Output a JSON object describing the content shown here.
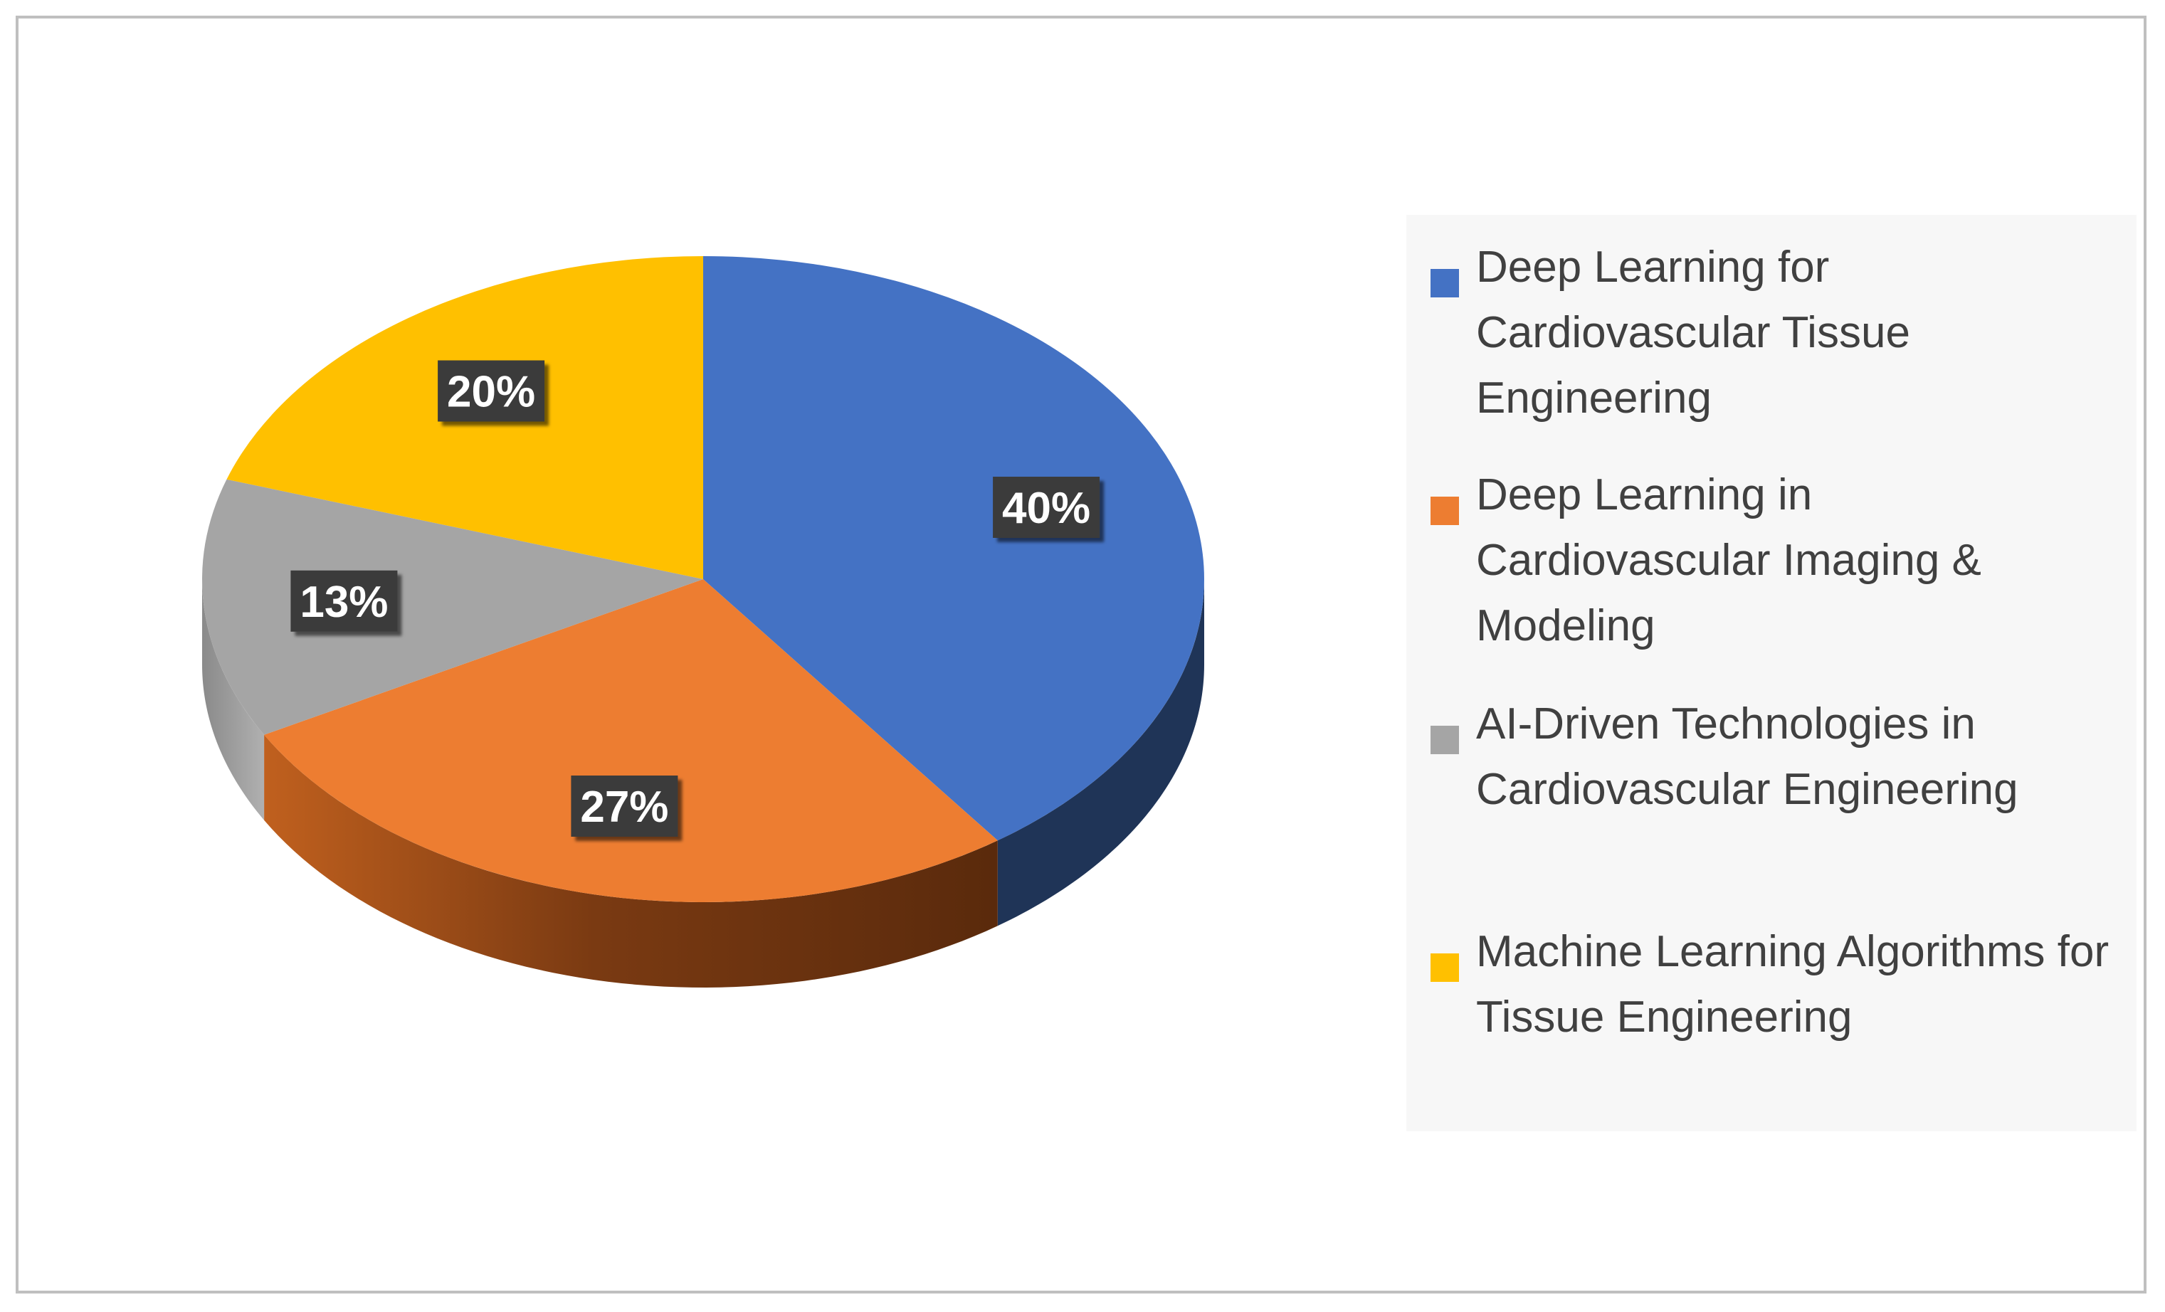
{
  "chart_data": {
    "type": "pie",
    "title": "",
    "style": "3d",
    "legend_position": "right",
    "slices": [
      {
        "label": "Deep Learning for Cardiovascular Tissue Engineering",
        "value": 40,
        "display": "40%",
        "color": "#4472c4",
        "side_color": "#1f3457"
      },
      {
        "label": "Deep Learning in Cardiovascular Imaging & Modeling",
        "value": 27,
        "display": "27%",
        "color": "#ed7d31",
        "side_color": "#6e3410"
      },
      {
        "label": "AI-Driven Technologies in Cardiovascular Engineering",
        "value": 13,
        "display": "13%",
        "color": "#a5a5a5",
        "side_color": "#6e6e6e"
      },
      {
        "label": "Machine Learning Algorithms for Tissue Engineering",
        "value": 20,
        "display": "20%",
        "color": "#ffc000",
        "side_color": "#8a6a00"
      }
    ]
  }
}
